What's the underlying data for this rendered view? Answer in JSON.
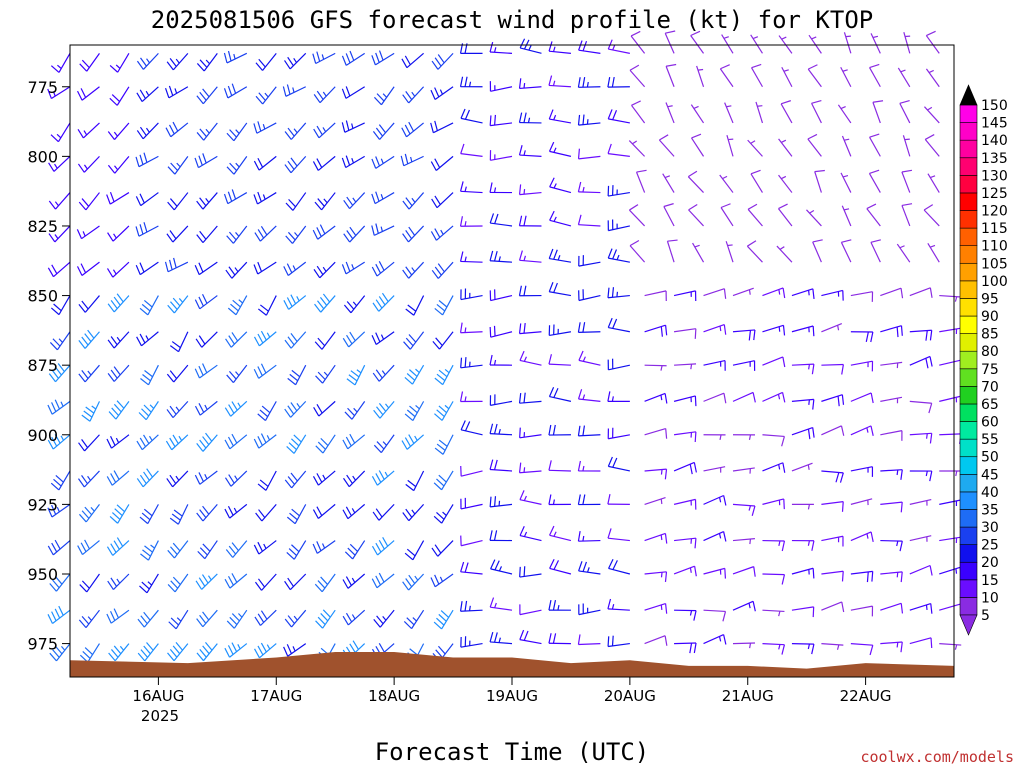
{
  "chart_data": {
    "type": "wind-barb-profile",
    "title": "2025081506 GFS forecast wind profile (kt) for KTOP",
    "xlabel": "Forecast Time (UTC)",
    "ylabel": "",
    "units": "kt",
    "credit": "coolwx.com/models",
    "y_axis": {
      "quantity": "pressure (hPa)",
      "inverted": true,
      "range": [
        760,
        987
      ],
      "tick_values": [
        775,
        800,
        825,
        850,
        875,
        900,
        925,
        950,
        975
      ],
      "tick_labels": [
        "775",
        "800",
        "825",
        "850",
        "875",
        "900",
        "925",
        "950",
        "975"
      ],
      "barb_levels": [
        763,
        775,
        788,
        800,
        813,
        825,
        838,
        850,
        863,
        875,
        888,
        900,
        913,
        925,
        938,
        950,
        963,
        975
      ]
    },
    "x_axis": {
      "range": [
        "2025-08-15 06",
        "2025-08-22 18"
      ],
      "tick_values": [
        "2025-08-16 00",
        "2025-08-17 00",
        "2025-08-18 00",
        "2025-08-19 00",
        "2025-08-20 00",
        "2025-08-21 00",
        "2025-08-22 00"
      ],
      "tick_labels": [
        "16AUG",
        "17AUG",
        "18AUG",
        "19AUG",
        "20AUG",
        "21AUG",
        "22AUG"
      ],
      "year_label": "2025",
      "hourly_times": [
        "2025-08-15 06",
        "2025-08-20 00"
      ],
      "three_hourly_times": [
        "2025-08-20 03",
        "2025-08-22 18"
      ]
    },
    "colorbar": {
      "levels": [
        5,
        10,
        15,
        20,
        25,
        30,
        35,
        40,
        45,
        50,
        55,
        60,
        65,
        70,
        75,
        80,
        85,
        90,
        95,
        100,
        105,
        110,
        115,
        120,
        125,
        130,
        135,
        140,
        145,
        150
      ],
      "colors": [
        "#8a2be2",
        "#6a0dff",
        "#3a00ff",
        "#1010ee",
        "#1a40f0",
        "#1e6cf5",
        "#1e90ff",
        "#1eaaf0",
        "#00c8f0",
        "#00e0c8",
        "#00eaa0",
        "#00e060",
        "#20d020",
        "#60e020",
        "#a0ee20",
        "#e0f000",
        "#ffff00",
        "#ffe000",
        "#ffc000",
        "#ffa000",
        "#ff8000",
        "#ff6000",
        "#ff3000",
        "#ff0000",
        "#ff0040",
        "#ff0070",
        "#ff00a0",
        "#ff00c8",
        "#ff00e8",
        "#000000"
      ]
    },
    "terrain_color": "#a0522d",
    "surface_pressure": {
      "note": "hatched brown block at the bottom marks pressures below ground level",
      "times": [
        "2025-08-15 06",
        "2025-08-16 06",
        "2025-08-17 00",
        "2025-08-17 12",
        "2025-08-18 00",
        "2025-08-18 12",
        "2025-08-19 00",
        "2025-08-19 12",
        "2025-08-20 00",
        "2025-08-20 12",
        "2025-08-21 00",
        "2025-08-21 12",
        "2025-08-22 00",
        "2025-08-22 18"
      ],
      "values": [
        981,
        982,
        980,
        978,
        978,
        980,
        980,
        982,
        981,
        983,
        983,
        984,
        982,
        983
      ]
    },
    "wind_profile": [
      {
        "period": [
          "2025-08-15 06",
          "2025-08-15 18"
        ],
        "pressure_range": [
          763,
          838
        ],
        "direction_deg": 225,
        "speed_kt": [
          15,
          20
        ]
      },
      {
        "period": [
          "2025-08-15 18",
          "2025-08-18 12"
        ],
        "pressure_range": [
          763,
          838
        ],
        "direction_deg": 230,
        "speed_kt": [
          20,
          30
        ]
      },
      {
        "period": [
          "2025-08-15 06",
          "2025-08-18 12"
        ],
        "pressure_range": [
          850,
          975
        ],
        "direction_deg": 220,
        "speed_kt": [
          20,
          40
        ]
      },
      {
        "period": [
          "2025-08-18 12",
          "2025-08-20 00"
        ],
        "pressure_range": [
          763,
          975
        ],
        "direction_deg": 270,
        "speed_kt": [
          10,
          25
        ]
      },
      {
        "period": [
          "2025-08-20 03",
          "2025-08-22 18"
        ],
        "pressure_range": [
          763,
          838
        ],
        "direction_deg": 330,
        "speed_kt": [
          5,
          10
        ]
      },
      {
        "period": [
          "2025-08-20 03",
          "2025-08-22 18"
        ],
        "pressure_range": [
          850,
          975
        ],
        "direction_deg": 80,
        "speed_kt": [
          5,
          20
        ]
      }
    ]
  }
}
